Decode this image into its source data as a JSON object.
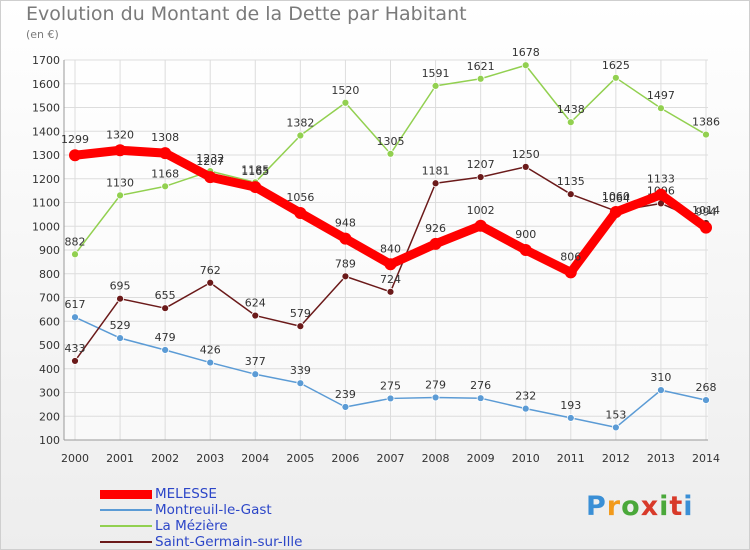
{
  "title": "Evolution du Montant de la Dette par Habitant",
  "subtitle": "(en €)",
  "logo_text": "Proxiti",
  "chart_data": {
    "type": "line",
    "title": "Evolution du Montant de la Dette par Habitant",
    "ylabel": "(en €)",
    "xlabel": "",
    "x": [
      "2000",
      "2001",
      "2002",
      "2003",
      "2004",
      "2005",
      "2006",
      "2007",
      "2008",
      "2009",
      "2010",
      "2011",
      "2012",
      "2013",
      "2014"
    ],
    "ylim": [
      100,
      1700
    ],
    "yticks": [
      100,
      200,
      300,
      400,
      500,
      600,
      700,
      800,
      900,
      1000,
      1100,
      1200,
      1300,
      1400,
      1500,
      1600,
      1700
    ],
    "grid": true,
    "legend": "bottom-left",
    "series": [
      {
        "name": "MELESSE",
        "color": "#ff0000",
        "values": [
          1299,
          1320,
          1308,
          1207,
          1165,
          1056,
          948,
          840,
          926,
          1002,
          900,
          806,
          1060,
          1133,
          994
        ]
      },
      {
        "name": "Montreuil-le-Gast",
        "color": "#5b9bd5",
        "values": [
          617,
          529,
          479,
          426,
          377,
          339,
          239,
          275,
          279,
          276,
          232,
          193,
          153,
          310,
          268
        ]
      },
      {
        "name": "La Mézière",
        "color": "#92d050",
        "values": [
          882,
          1130,
          1168,
          1232,
          1185,
          1382,
          1520,
          1305,
          1591,
          1621,
          1678,
          1438,
          1625,
          1497,
          1386
        ]
      },
      {
        "name": "Saint-Germain-sur-Ille",
        "color": "#6b1a1a",
        "values": [
          433,
          695,
          655,
          762,
          624,
          579,
          789,
          724,
          1181,
          1207,
          1250,
          1135,
          1064,
          1096,
          1014
        ]
      }
    ]
  }
}
